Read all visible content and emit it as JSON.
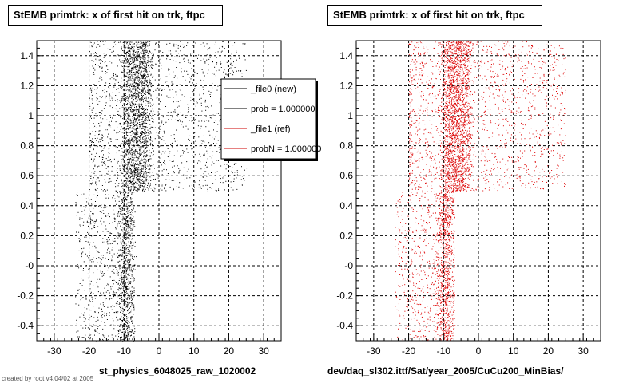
{
  "chart_data": [
    {
      "type": "scatter",
      "title": "StEMB primtrk: x of first hit on trk, ftpc",
      "xlabel": "st_physics_6048025_raw_1020002",
      "ylabel": "",
      "xlim": [
        -35,
        35
      ],
      "ylim": [
        -0.5,
        1.5
      ],
      "x_ticks": [
        "-30",
        "-20",
        "-10",
        "0",
        "10",
        "20",
        "30"
      ],
      "y_ticks": [
        "-0.4",
        "-0.2",
        "-0",
        "0.2",
        "0.4",
        "0.6",
        "0.8",
        "1",
        "1.2",
        "1.4"
      ],
      "grid": true,
      "marker_color": "#000000",
      "density_regions": [
        {
          "x": [
            -20,
            25
          ],
          "y": [
            0.5,
            1.5
          ],
          "peak_x": [
            -10,
            -3
          ]
        },
        {
          "x": [
            -24,
            -7
          ],
          "y": [
            -0.5,
            0.5
          ],
          "peak_x": [
            -11,
            -8
          ]
        }
      ],
      "legend": {
        "position": "top-right",
        "entries": [
          {
            "label": "_file0 (new)",
            "color": "#000000"
          },
          {
            "label": "prob = 1.000000",
            "color": "#000000"
          },
          {
            "label": "_file1 (ref)",
            "color": "#cc0000"
          },
          {
            "label": "probN = 1.000000",
            "color": "#cc0000"
          }
        ]
      }
    },
    {
      "type": "scatter",
      "title": "StEMB primtrk: x of first hit on trk, ftpc",
      "xlabel": "dev/daq_sl302.ittf/Sat/year_2005/CuCu200_MinBias/",
      "ylabel": "",
      "xlim": [
        -35,
        35
      ],
      "ylim": [
        -0.5,
        1.5
      ],
      "x_ticks": [
        "-30",
        "-20",
        "-10",
        "0",
        "10",
        "20",
        "30"
      ],
      "y_ticks": [
        "-0.4",
        "-0.2",
        "-0",
        "0.2",
        "0.4",
        "0.6",
        "0.8",
        "1",
        "1.2",
        "1.4"
      ],
      "grid": true,
      "marker_color": "#dd0000",
      "density_regions": [
        {
          "x": [
            -20,
            25
          ],
          "y": [
            0.5,
            1.5
          ],
          "peak_x": [
            -10,
            -3
          ]
        },
        {
          "x": [
            -24,
            -7
          ],
          "y": [
            -0.5,
            0.5
          ],
          "peak_x": [
            -11,
            -8
          ]
        }
      ]
    }
  ],
  "footer": "created by root v4.04/02 at 2005"
}
